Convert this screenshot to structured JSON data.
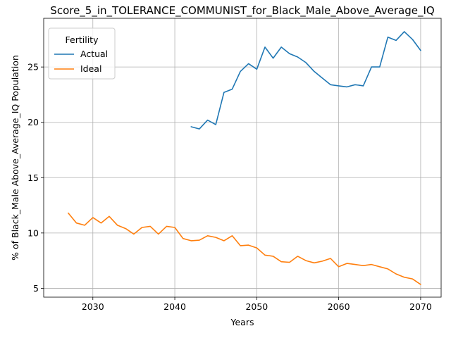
{
  "chart_data": {
    "type": "line",
    "title": "Score_5_in_TOLERANCE_COMMUNIST_for_Black_Male_Above_Average_IQ",
    "xlabel": "Years",
    "ylabel": "% of Black_Male Above_Average_IQ Population",
    "xlim": [
      2024,
      2072.5
    ],
    "ylim": [
      4.2,
      29.4
    ],
    "xticks": [
      2030,
      2040,
      2050,
      2060,
      2070
    ],
    "yticks": [
      5,
      10,
      15,
      20,
      25
    ],
    "grid": true,
    "legend": {
      "title": "Fertility",
      "position": "top-left"
    },
    "series": [
      {
        "name": "Actual",
        "color": "#1f77b4",
        "x": [
          2042,
          2043,
          2044,
          2045,
          2046,
          2047,
          2048,
          2049,
          2050,
          2051,
          2052,
          2053,
          2054,
          2055,
          2056,
          2057,
          2058,
          2059,
          2060,
          2061,
          2062,
          2063,
          2064,
          2065,
          2066,
          2067,
          2068,
          2069,
          2070
        ],
        "values": [
          19.6,
          19.4,
          20.2,
          19.8,
          22.7,
          23.0,
          24.6,
          25.3,
          24.8,
          26.8,
          25.8,
          26.8,
          26.2,
          25.9,
          25.4,
          24.6,
          24.0,
          23.4,
          23.3,
          23.2,
          23.4,
          23.3,
          25.0,
          25.0,
          27.7,
          27.4,
          28.2,
          27.5,
          26.5
        ]
      },
      {
        "name": "Ideal",
        "color": "#ff7f0e",
        "x": [
          2027,
          2028,
          2029,
          2030,
          2031,
          2032,
          2033,
          2034,
          2035,
          2036,
          2037,
          2038,
          2039,
          2040,
          2041,
          2042,
          2043,
          2044,
          2045,
          2046,
          2047,
          2048,
          2049,
          2050,
          2051,
          2052,
          2053,
          2054,
          2055,
          2056,
          2057,
          2058,
          2059,
          2060,
          2061,
          2062,
          2063,
          2064,
          2065,
          2066,
          2067,
          2068,
          2069,
          2070
        ],
        "values": [
          11.8,
          10.9,
          10.7,
          11.4,
          10.9,
          11.5,
          10.7,
          10.4,
          9.9,
          10.5,
          10.6,
          9.9,
          10.6,
          10.5,
          9.5,
          9.3,
          9.35,
          9.75,
          9.6,
          9.3,
          9.75,
          8.85,
          8.9,
          8.65,
          8.0,
          7.9,
          7.4,
          7.35,
          7.9,
          7.5,
          7.3,
          7.45,
          7.7,
          6.95,
          7.25,
          7.15,
          7.05,
          7.15,
          6.95,
          6.75,
          6.3,
          6.0,
          5.85,
          5.35
        ]
      }
    ]
  }
}
